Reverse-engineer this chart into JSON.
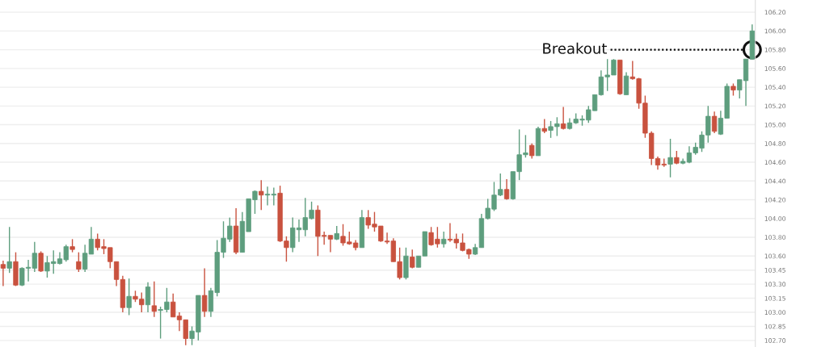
{
  "chart_data": {
    "type": "candlestick",
    "categories": [
      null,
      null,
      null,
      null,
      null,
      null,
      null,
      null,
      null,
      null,
      null,
      null,
      null,
      null,
      null,
      null,
      null,
      null,
      null,
      null,
      null,
      null,
      null,
      null,
      null,
      null,
      null,
      null,
      null,
      null,
      null,
      null,
      null,
      null,
      null,
      null,
      null,
      null,
      null,
      null,
      null,
      null,
      null,
      null,
      null,
      null,
      null,
      null,
      null,
      null,
      null,
      null,
      null,
      null,
      null,
      null,
      null,
      null,
      null,
      null,
      null,
      null,
      null,
      null,
      null,
      null,
      null,
      null,
      null,
      null,
      null,
      null,
      null,
      null,
      null,
      null,
      null,
      null,
      null,
      null,
      null,
      null,
      null,
      null,
      null,
      null,
      null,
      null,
      null,
      null,
      null,
      null,
      null,
      null,
      null,
      null,
      null,
      null,
      null,
      null,
      null,
      null,
      null,
      null,
      null,
      null,
      null,
      null,
      null,
      null,
      null,
      null,
      null,
      null,
      null,
      null,
      null,
      null,
      null,
      null
    ],
    "ohlc": [
      [
        103.51,
        103.55,
        103.28,
        103.47
      ],
      [
        103.47,
        103.91,
        103.42,
        103.54
      ],
      [
        103.54,
        103.64,
        103.28,
        103.29
      ],
      [
        103.29,
        103.48,
        103.28,
        103.47
      ],
      [
        103.47,
        103.56,
        103.33,
        103.48
      ],
      [
        103.47,
        103.75,
        103.43,
        103.63
      ],
      [
        103.63,
        103.65,
        103.43,
        103.44
      ],
      [
        103.44,
        103.6,
        103.37,
        103.53
      ],
      [
        103.52,
        103.66,
        103.41,
        103.54
      ],
      [
        103.52,
        103.64,
        103.51,
        103.57
      ],
      [
        103.56,
        103.72,
        103.54,
        103.7
      ],
      [
        103.7,
        103.78,
        103.64,
        103.67
      ],
      [
        103.54,
        103.64,
        103.43,
        103.46
      ],
      [
        103.46,
        103.72,
        103.43,
        103.63
      ],
      [
        103.62,
        103.91,
        103.62,
        103.78
      ],
      [
        103.78,
        103.84,
        103.66,
        103.69
      ],
      [
        103.7,
        103.78,
        103.62,
        103.68
      ],
      [
        103.69,
        103.69,
        103.47,
        103.54
      ],
      [
        103.54,
        103.54,
        103.28,
        103.35
      ],
      [
        103.35,
        103.39,
        103.0,
        103.05
      ],
      [
        103.05,
        103.36,
        102.97,
        103.17
      ],
      [
        103.17,
        103.23,
        103.11,
        103.14
      ],
      [
        103.14,
        103.21,
        103.0,
        103.08
      ],
      [
        103.08,
        103.32,
        103.0,
        103.27
      ],
      [
        103.07,
        103.33,
        102.95,
        103.01
      ],
      [
        103.02,
        103.06,
        102.72,
        103.03
      ],
      [
        103.03,
        103.26,
        103.0,
        103.11
      ],
      [
        103.11,
        103.2,
        102.95,
        102.95
      ],
      [
        102.96,
        103.0,
        102.8,
        102.92
      ],
      [
        102.92,
        102.92,
        102.65,
        102.72
      ],
      [
        102.72,
        102.85,
        102.65,
        102.8
      ],
      [
        102.79,
        103.18,
        102.7,
        103.18
      ],
      [
        103.18,
        103.47,
        102.95,
        103.01
      ],
      [
        103.01,
        103.26,
        102.95,
        103.23
      ],
      [
        103.21,
        103.77,
        103.17,
        103.64
      ],
      [
        103.64,
        103.97,
        103.58,
        103.79
      ],
      [
        103.78,
        104.01,
        103.75,
        103.92
      ],
      [
        103.92,
        104.11,
        103.62,
        103.64
      ],
      [
        103.64,
        104.07,
        103.64,
        103.97
      ],
      [
        103.86,
        104.21,
        103.86,
        104.21
      ],
      [
        104.2,
        104.3,
        104.05,
        104.29
      ],
      [
        104.29,
        104.41,
        104.09,
        104.25
      ],
      [
        104.25,
        104.34,
        104.14,
        104.26
      ],
      [
        104.25,
        104.33,
        104.14,
        104.26
      ],
      [
        104.27,
        104.35,
        103.75,
        103.76
      ],
      [
        103.76,
        103.81,
        103.54,
        103.69
      ],
      [
        103.69,
        104.01,
        103.64,
        103.9
      ],
      [
        103.88,
        103.99,
        103.75,
        103.9
      ],
      [
        103.88,
        104.22,
        103.81,
        104.01
      ],
      [
        104.0,
        104.18,
        103.99,
        104.09
      ],
      [
        104.09,
        104.14,
        103.6,
        103.81
      ],
      [
        103.82,
        103.86,
        103.72,
        103.81
      ],
      [
        103.82,
        103.82,
        103.64,
        103.78
      ],
      [
        103.78,
        103.92,
        103.77,
        103.84
      ],
      [
        103.81,
        103.94,
        103.71,
        103.74
      ],
      [
        103.75,
        103.86,
        103.72,
        103.73
      ],
      [
        103.74,
        103.77,
        103.66,
        103.69
      ],
      [
        103.69,
        104.09,
        103.69,
        104.01
      ],
      [
        104.01,
        104.09,
        103.89,
        103.93
      ],
      [
        103.94,
        104.07,
        103.86,
        103.91
      ],
      [
        103.92,
        103.92,
        103.75,
        103.76
      ],
      [
        103.76,
        103.85,
        103.73,
        103.75
      ],
      [
        103.76,
        103.79,
        103.54,
        103.54
      ],
      [
        103.54,
        103.69,
        103.35,
        103.37
      ],
      [
        103.37,
        103.69,
        103.35,
        103.6
      ],
      [
        103.59,
        103.67,
        103.47,
        103.48
      ],
      [
        103.48,
        103.6,
        103.48,
        103.6
      ],
      [
        103.6,
        103.86,
        103.6,
        103.86
      ],
      [
        103.85,
        103.91,
        103.71,
        103.72
      ],
      [
        103.78,
        103.91,
        103.69,
        103.73
      ],
      [
        103.73,
        103.86,
        103.69,
        103.78
      ],
      [
        103.78,
        103.95,
        103.75,
        103.77
      ],
      [
        103.78,
        103.84,
        103.68,
        103.74
      ],
      [
        103.74,
        103.84,
        103.65,
        103.66
      ],
      [
        103.67,
        103.68,
        103.57,
        103.62
      ],
      [
        103.62,
        103.73,
        103.61,
        103.69
      ],
      [
        103.69,
        104.05,
        103.69,
        104.0
      ],
      [
        104.0,
        104.21,
        103.99,
        104.11
      ],
      [
        104.1,
        104.39,
        104.08,
        104.25
      ],
      [
        104.25,
        104.48,
        104.24,
        104.31
      ],
      [
        104.31,
        104.42,
        104.2,
        104.21
      ],
      [
        104.21,
        104.5,
        104.2,
        104.5
      ],
      [
        104.5,
        104.95,
        104.41,
        104.68
      ],
      [
        104.68,
        104.89,
        104.65,
        104.7
      ],
      [
        104.78,
        104.8,
        104.64,
        104.67
      ],
      [
        104.67,
        104.98,
        104.67,
        104.96
      ],
      [
        104.96,
        105.06,
        104.91,
        104.93
      ],
      [
        104.94,
        105.04,
        104.86,
        104.98
      ],
      [
        104.98,
        105.08,
        104.88,
        105.01
      ],
      [
        105.01,
        105.19,
        104.95,
        104.96
      ],
      [
        104.96,
        105.07,
        104.95,
        105.02
      ],
      [
        105.02,
        105.12,
        105.01,
        105.06
      ],
      [
        105.05,
        105.1,
        104.99,
        105.06
      ],
      [
        105.05,
        105.2,
        105.02,
        105.16
      ],
      [
        105.15,
        105.32,
        105.15,
        105.32
      ],
      [
        105.32,
        105.58,
        105.31,
        105.51
      ],
      [
        105.51,
        105.7,
        105.36,
        105.53
      ],
      [
        105.53,
        105.7,
        105.53,
        105.69
      ],
      [
        105.69,
        105.69,
        105.32,
        105.33
      ],
      [
        105.32,
        105.56,
        105.32,
        105.52
      ],
      [
        105.51,
        105.68,
        105.48,
        105.49
      ],
      [
        105.49,
        105.5,
        105.17,
        105.23
      ],
      [
        105.23,
        105.31,
        104.86,
        104.91
      ],
      [
        104.91,
        104.93,
        104.57,
        104.64
      ],
      [
        104.64,
        104.66,
        104.52,
        104.57
      ],
      [
        104.58,
        104.64,
        104.55,
        104.57
      ],
      [
        104.58,
        104.85,
        104.44,
        104.65
      ],
      [
        104.65,
        104.72,
        104.58,
        104.59
      ],
      [
        104.59,
        104.64,
        104.58,
        104.61
      ],
      [
        104.6,
        104.77,
        104.59,
        104.7
      ],
      [
        104.7,
        104.81,
        104.68,
        104.76
      ],
      [
        104.75,
        104.93,
        104.71,
        104.89
      ],
      [
        104.89,
        105.2,
        104.81,
        105.09
      ],
      [
        105.09,
        105.14,
        104.91,
        104.93
      ],
      [
        104.9,
        105.15,
        104.89,
        105.07
      ],
      [
        105.07,
        105.44,
        105.07,
        105.41
      ],
      [
        105.41,
        105.44,
        105.31,
        105.37
      ],
      [
        105.37,
        105.48,
        105.28,
        105.48
      ],
      [
        105.47,
        105.7,
        105.2,
        105.7
      ],
      [
        105.7,
        106.07,
        105.7,
        106.0
      ]
    ],
    "colors": [
      "#c9523f",
      "#5e9e7e",
      "#c9523f",
      "#5e9e7e",
      "#5e9e7e",
      "#5e9e7e",
      "#c9523f",
      "#5e9e7e",
      "#5e9e7e",
      "#5e9e7e",
      "#5e9e7e",
      "#c9523f",
      "#c9523f",
      "#5e9e7e",
      "#5e9e7e",
      "#c9523f",
      "#c9523f",
      "#c9523f",
      "#c9523f",
      "#c9523f",
      "#5e9e7e",
      "#c9523f",
      "#c9523f",
      "#5e9e7e",
      "#c9523f",
      "#5e9e7e",
      "#5e9e7e",
      "#c9523f",
      "#c9523f",
      "#c9523f",
      "#5e9e7e",
      "#5e9e7e",
      "#c9523f",
      "#5e9e7e",
      "#5e9e7e",
      "#5e9e7e",
      "#5e9e7e",
      "#c9523f",
      "#5e9e7e",
      "#5e9e7e",
      "#5e9e7e",
      "#c9523f",
      "#5e9e7e",
      "#5e9e7e",
      "#c9523f",
      "#c9523f",
      "#5e9e7e",
      "#5e9e7e",
      "#5e9e7e",
      "#5e9e7e",
      "#c9523f",
      "#c9523f",
      "#c9523f",
      "#5e9e7e",
      "#c9523f",
      "#c9523f",
      "#c9523f",
      "#5e9e7e",
      "#c9523f",
      "#c9523f",
      "#c9523f",
      "#c9523f",
      "#c9523f",
      "#c9523f",
      "#5e9e7e",
      "#c9523f",
      "#5e9e7e",
      "#5e9e7e",
      "#c9523f",
      "#c9523f",
      "#5e9e7e",
      "#c9523f",
      "#c9523f",
      "#c9523f",
      "#c9523f",
      "#5e9e7e",
      "#5e9e7e",
      "#5e9e7e",
      "#5e9e7e",
      "#5e9e7e",
      "#c9523f",
      "#5e9e7e",
      "#5e9e7e",
      "#5e9e7e",
      "#c9523f",
      "#5e9e7e",
      "#c9523f",
      "#5e9e7e",
      "#5e9e7e",
      "#c9523f",
      "#5e9e7e",
      "#5e9e7e",
      "#5e9e7e",
      "#5e9e7e",
      "#5e9e7e",
      "#5e9e7e",
      "#5e9e7e",
      "#5e9e7e",
      "#c9523f",
      "#5e9e7e",
      "#c9523f",
      "#c9523f",
      "#c9523f",
      "#c9523f",
      "#c9523f",
      "#c9523f",
      "#5e9e7e",
      "#c9523f",
      "#5e9e7e",
      "#5e9e7e",
      "#5e9e7e",
      "#5e9e7e",
      "#5e9e7e",
      "#c9523f",
      "#5e9e7e",
      "#5e9e7e",
      "#c9523f",
      "#5e9e7e",
      "#5e9e7e",
      "#5e9e7e"
    ],
    "ylim": [
      102.63,
      106.33
    ],
    "yticks": [
      {
        "value": 106.2,
        "label": "106.20"
      },
      {
        "value": 106.0,
        "label": "106.00"
      },
      {
        "value": 105.8,
        "label": "105.80"
      },
      {
        "value": 105.6,
        "label": "105.60"
      },
      {
        "value": 105.4,
        "label": "105.40"
      },
      {
        "value": 105.2,
        "label": "105.20"
      },
      {
        "value": 105.0,
        "label": "105.00"
      },
      {
        "value": 104.8,
        "label": "104.80"
      },
      {
        "value": 104.6,
        "label": "104.60"
      },
      {
        "value": 104.4,
        "label": "104.40"
      },
      {
        "value": 104.2,
        "label": "104.20"
      },
      {
        "value": 104.0,
        "label": "104.00"
      },
      {
        "value": 103.8,
        "label": "103.80"
      },
      {
        "value": 103.6,
        "label": "103.60"
      },
      {
        "value": 103.45,
        "label": "103.45"
      },
      {
        "value": 103.3,
        "label": "103.30"
      },
      {
        "value": 103.15,
        "label": "103.15"
      },
      {
        "value": 103.0,
        "label": "103.00"
      },
      {
        "value": 102.85,
        "label": "102.85"
      },
      {
        "value": 102.7,
        "label": "102.70"
      }
    ],
    "grid": "y",
    "ref_lines": [
      {
        "axis": "y",
        "value": 105.8,
        "label": "Breakout",
        "line_style": "dotted",
        "color": "#111111"
      }
    ]
  }
}
